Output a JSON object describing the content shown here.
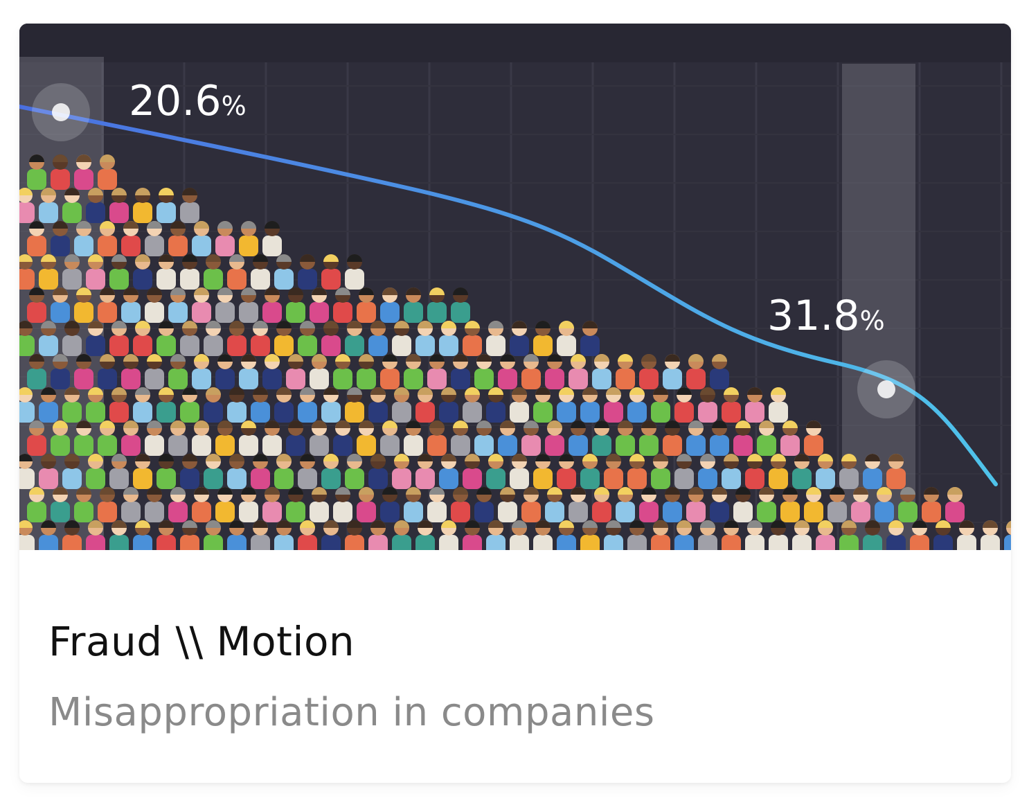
{
  "card": {
    "title": "Fraud \\\\ Motion",
    "subtitle": "Misappropriation in companies"
  },
  "thumbnail": {
    "label_left": "20.6",
    "label_left_unit": "%",
    "label_right": "31.8",
    "label_right_unit": "%",
    "colors": {
      "background": "#2e2d3a",
      "line_start": "#4a6fe0",
      "line_end": "#4fc3ea",
      "highlight_band": "#8a8a94"
    },
    "crowd_colors": [
      "#e8734a",
      "#6cc04a",
      "#4a90d9",
      "#f2b830",
      "#d94a8c",
      "#e8e3d8",
      "#e04a4a",
      "#3a9e8e",
      "#a0a0a8",
      "#2a3a7a",
      "#e88bb0",
      "#8ec6e8"
    ]
  }
}
